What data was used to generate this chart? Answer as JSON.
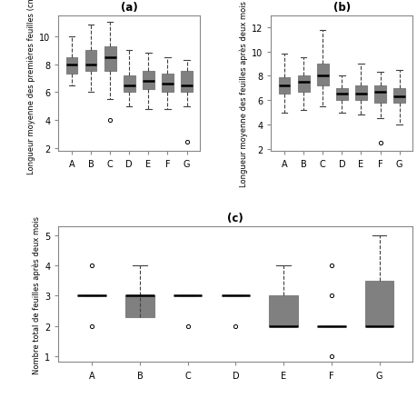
{
  "title_a": "(a)",
  "title_b": "(b)",
  "title_c": "(c)",
  "categories": [
    "A",
    "B",
    "C",
    "D",
    "E",
    "F",
    "G"
  ],
  "ylabel_a": "Longueur moyenne des premières feuilles (cm)",
  "ylabel_b": "Longueur moyenne des feuilles après deux mois (cm)",
  "ylabel_c": "Nombre total de feuilles après deux mois",
  "ylim_a": [
    1.8,
    11.5
  ],
  "ylim_b": [
    1.8,
    13.0
  ],
  "ylim_c": [
    0.8,
    5.3
  ],
  "yticks_a": [
    2,
    4,
    6,
    8,
    10
  ],
  "yticks_b": [
    2,
    4,
    6,
    8,
    10,
    12
  ],
  "yticks_c": [
    1,
    2,
    3,
    4,
    5
  ],
  "boxplot_a": {
    "A": {
      "med": 8.0,
      "q1": 7.3,
      "q3": 8.5,
      "whislo": 6.5,
      "whishi": 10.0,
      "fliers": []
    },
    "B": {
      "med": 8.0,
      "q1": 7.5,
      "q3": 9.0,
      "whislo": 6.0,
      "whishi": 10.8,
      "fliers": []
    },
    "C": {
      "med": 8.5,
      "q1": 7.5,
      "q3": 9.3,
      "whislo": 5.5,
      "whishi": 11.0,
      "fliers": [
        4.0
      ]
    },
    "D": {
      "med": 6.5,
      "q1": 6.0,
      "q3": 7.2,
      "whislo": 5.0,
      "whishi": 9.0,
      "fliers": []
    },
    "E": {
      "med": 6.8,
      "q1": 6.2,
      "q3": 7.5,
      "whislo": 4.8,
      "whishi": 8.8,
      "fliers": []
    },
    "F": {
      "med": 6.6,
      "q1": 6.0,
      "q3": 7.3,
      "whislo": 4.8,
      "whishi": 8.5,
      "fliers": []
    },
    "G": {
      "med": 6.5,
      "q1": 6.0,
      "q3": 7.5,
      "whislo": 5.0,
      "whishi": 8.3,
      "fliers": [
        2.5
      ]
    }
  },
  "boxplot_b": {
    "A": {
      "med": 7.2,
      "q1": 6.5,
      "q3": 7.9,
      "whislo": 5.0,
      "whishi": 9.8,
      "fliers": []
    },
    "B": {
      "med": 7.5,
      "q1": 6.7,
      "q3": 8.0,
      "whislo": 5.2,
      "whishi": 9.5,
      "fliers": []
    },
    "C": {
      "med": 8.0,
      "q1": 7.2,
      "q3": 9.0,
      "whislo": 5.5,
      "whishi": 11.8,
      "fliers": []
    },
    "D": {
      "med": 6.5,
      "q1": 6.0,
      "q3": 7.0,
      "whislo": 5.0,
      "whishi": 8.0,
      "fliers": []
    },
    "E": {
      "med": 6.5,
      "q1": 6.0,
      "q3": 7.2,
      "whislo": 4.8,
      "whishi": 9.0,
      "fliers": []
    },
    "F": {
      "med": 6.7,
      "q1": 5.8,
      "q3": 7.2,
      "whislo": 4.5,
      "whishi": 8.3,
      "fliers": [
        2.5
      ]
    },
    "G": {
      "med": 6.3,
      "q1": 5.8,
      "q3": 7.0,
      "whislo": 4.0,
      "whishi": 8.5,
      "fliers": []
    }
  },
  "boxplot_c": {
    "A": {
      "med": 3.0,
      "q1": 3.0,
      "q3": 3.0,
      "whislo": 3.0,
      "whishi": 3.0,
      "fliers": [
        2.0,
        4.0
      ]
    },
    "B": {
      "med": 3.0,
      "q1": 2.3,
      "q3": 3.0,
      "whislo": 3.0,
      "whishi": 4.0,
      "fliers": []
    },
    "C": {
      "med": 3.0,
      "q1": 3.0,
      "q3": 3.0,
      "whislo": 3.0,
      "whishi": 3.0,
      "fliers": [
        2.0
      ]
    },
    "D": {
      "med": 3.0,
      "q1": 3.0,
      "q3": 3.0,
      "whislo": 3.0,
      "whishi": 3.0,
      "fliers": [
        2.0
      ]
    },
    "E": {
      "med": 2.0,
      "q1": 2.0,
      "q3": 3.0,
      "whislo": 2.0,
      "whishi": 4.0,
      "fliers": []
    },
    "F": {
      "med": 2.0,
      "q1": 2.0,
      "q3": 2.0,
      "whislo": 2.0,
      "whishi": 2.0,
      "fliers": [
        1.0,
        3.0,
        4.0
      ]
    },
    "G": {
      "med": 2.0,
      "q1": 2.0,
      "q3": 3.5,
      "whislo": 2.0,
      "whishi": 5.0,
      "fliers": []
    }
  },
  "background_color": "#ffffff",
  "box_facecolor": "white",
  "box_edgecolor": "#808080",
  "median_color": "black",
  "whisker_color": "#404040",
  "cap_color": "#404040",
  "flier_color": "#404040"
}
